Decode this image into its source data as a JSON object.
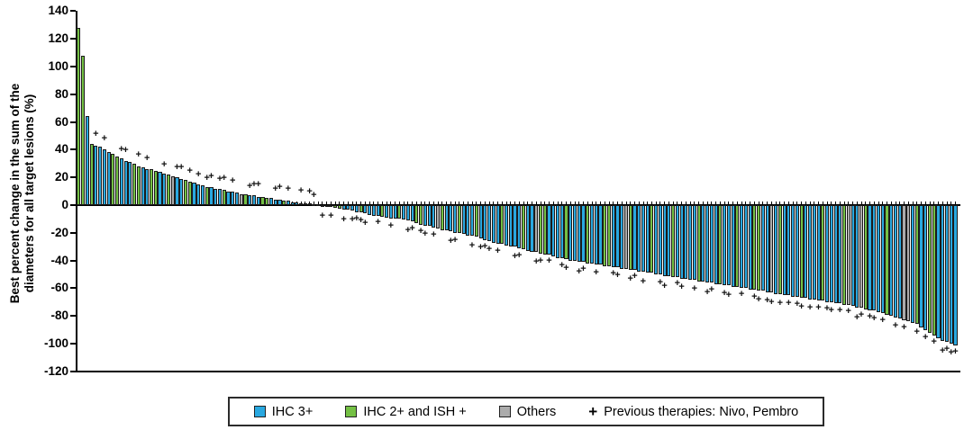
{
  "colors": {
    "ihc3_blue": "#29A8E0",
    "ihc2ish_green": "#74C044",
    "others_gray": "#ABABAB",
    "bar_outline": "#1B1B1B",
    "axis_black": "#000000"
  },
  "legend": {
    "items": [
      {
        "label": "IHC 3+",
        "color_key": "ihc3_blue"
      },
      {
        "label": "IHC 2+ and ISH +",
        "color_key": "ihc2ish_green"
      },
      {
        "label": "Others",
        "color_key": "others_gray"
      }
    ],
    "plus_symbol": "+",
    "plus_label": "Previous therapies: Nivo, Pembro"
  },
  "chart_data": {
    "type": "bar",
    "subtype": "waterfall",
    "ylabel": "Best percent change in the sum of the diameters for all target lesions (%)",
    "ylabel_lines": [
      "Best percent change in the sum of the",
      "diameters for all target lesions (%)"
    ],
    "ylim": [
      -120,
      140
    ],
    "y_ticks": [
      140,
      120,
      100,
      80,
      60,
      40,
      20,
      0,
      -20,
      -40,
      -60,
      -80,
      -100,
      -120
    ],
    "grid": false,
    "legend_position": "bottom",
    "marker_meaning": "Previous therapies: Nivo, Pembro",
    "values": [
      128,
      108,
      64,
      44,
      43,
      42,
      40,
      38,
      37,
      35,
      34,
      32,
      31,
      30,
      28,
      27,
      26,
      26,
      25,
      24,
      23,
      22,
      21,
      20,
      19,
      18,
      17,
      16,
      15,
      14,
      13,
      13,
      12,
      12,
      11,
      10,
      10,
      9,
      8,
      8,
      7,
      7,
      6,
      6,
      5,
      5,
      4,
      4,
      3,
      3,
      2,
      2,
      1.5,
      1,
      1,
      0.5,
      0.5,
      -0.5,
      -1,
      -1.5,
      -2,
      -2.5,
      -3,
      -3.5,
      -4,
      -5,
      -5.5,
      -6,
      -7,
      -7.5,
      -8,
      -8.5,
      -9,
      -9.5,
      -10,
      -10,
      -10.5,
      -11,
      -12,
      -13,
      -14,
      -15,
      -15,
      -16,
      -17,
      -18,
      -18,
      -19,
      -20,
      -20,
      -21,
      -22,
      -22,
      -23,
      -24,
      -25,
      -26,
      -27,
      -28,
      -28,
      -29,
      -30,
      -30,
      -31,
      -32,
      -33,
      -34,
      -34,
      -35,
      -36,
      -36,
      -37,
      -38,
      -38,
      -39,
      -40,
      -40,
      -41,
      -41,
      -42,
      -42,
      -43,
      -43,
      -44,
      -44,
      -45,
      -45,
      -46,
      -46,
      -47,
      -47,
      -48,
      -48,
      -49,
      -49,
      -50,
      -50,
      -51,
      -51,
      -52,
      -52,
      -53,
      -53,
      -54,
      -54,
      -55,
      -55,
      -56,
      -56,
      -57,
      -57,
      -58,
      -58,
      -59,
      -59,
      -60,
      -60,
      -61,
      -61,
      -62,
      -62,
      -63,
      -63,
      -64,
      -64,
      -65,
      -65,
      -66,
      -66,
      -67,
      -67,
      -68,
      -68,
      -69,
      -69,
      -70,
      -70,
      -71,
      -71,
      -72,
      -72,
      -73,
      -74,
      -74,
      -75,
      -76,
      -76,
      -77,
      -78,
      -79,
      -80,
      -81,
      -82,
      -83,
      -84,
      -85,
      -86,
      -88,
      -90,
      -92,
      -94,
      -96,
      -98,
      -99,
      -100,
      -101
    ],
    "green_indices": [
      0,
      1,
      3,
      8,
      9,
      13,
      14,
      17,
      18,
      21,
      25,
      26,
      30,
      34,
      39,
      43,
      44,
      48,
      52,
      56,
      60,
      61,
      66,
      71,
      75,
      79,
      80,
      85,
      89,
      93,
      99,
      104,
      108,
      109,
      114,
      119,
      123,
      124,
      129,
      134,
      139,
      145,
      150,
      154,
      158,
      159,
      164,
      169,
      174,
      179,
      184,
      189,
      196,
      199,
      200
    ],
    "gray_indices": [
      22,
      38,
      84,
      107,
      128,
      162,
      180,
      183,
      193,
      194
    ],
    "plus_marker_indices": [
      4,
      6,
      10,
      11,
      14,
      16,
      20,
      23,
      24,
      26,
      28,
      30,
      31,
      33,
      34,
      36,
      40,
      41,
      42,
      46,
      47,
      49,
      52,
      54,
      55,
      57,
      59,
      62,
      64,
      65,
      66,
      67,
      70,
      73,
      77,
      78,
      80,
      81,
      83,
      87,
      88,
      92,
      94,
      95,
      96,
      98,
      102,
      103,
      107,
      108,
      110,
      113,
      114,
      117,
      118,
      121,
      125,
      126,
      129,
      130,
      132,
      136,
      137,
      140,
      141,
      144,
      147,
      148,
      151,
      152,
      155,
      158,
      159,
      161,
      162,
      164,
      166,
      168,
      169,
      171,
      173,
      175,
      176,
      178,
      180,
      182,
      183,
      185,
      186,
      188,
      191,
      193,
      196,
      198,
      200,
      202,
      203,
      204,
      205
    ]
  }
}
